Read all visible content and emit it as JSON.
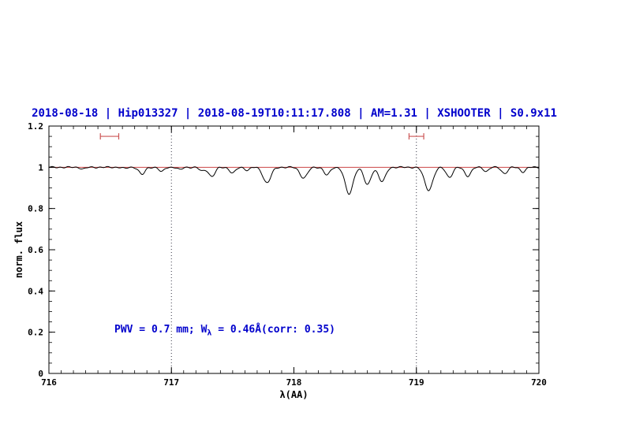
{
  "chart_data": {
    "type": "line",
    "title": "2018-08-18 | Hip013327 | 2018-08-19T10:11:17.808 | AM=1.31 | XSHOOTER | S0.9x11",
    "xlabel": "λ(AA)",
    "ylabel": "norm. flux",
    "xlim": [
      716,
      720
    ],
    "ylim": [
      0,
      1.2
    ],
    "x_ticks": [
      "716",
      "717",
      "718",
      "719",
      "720"
    ],
    "y_ticks": [
      "0",
      "0.2",
      "0.4",
      "0.6",
      "0.8",
      "1",
      "1.2"
    ],
    "x_minor_step": 0.1,
    "y_minor_step": 0.05,
    "grid": "off",
    "vlines": [
      717,
      719
    ],
    "continuum": 1.0,
    "noise_amplitude": 0.004,
    "colors": {
      "title": "#0000cc",
      "annotation": "#0000cc",
      "continuum": "#cc4444",
      "marker": "#cc5555",
      "spectrum": "#000000",
      "vline": "#333344",
      "frame": "#000000"
    },
    "markers": [
      {
        "x1": 716.42,
        "x2": 716.57,
        "y": 1.15
      },
      {
        "x1": 718.94,
        "x2": 719.06,
        "y": 1.15
      }
    ],
    "annotation": {
      "prefix": "PWV = 0.7 mm; W",
      "sub": "λ",
      "suffix": " = 0.46Å(corr: 0.35)",
      "x": 716.55,
      "y": 0.2
    },
    "absorption_lines": [
      [
        716.28,
        0.008,
        0.02
      ],
      [
        716.62,
        0.006,
        0.018
      ],
      [
        716.76,
        0.035,
        0.024
      ],
      [
        716.92,
        0.022,
        0.02
      ],
      [
        717.07,
        0.012,
        0.018
      ],
      [
        717.25,
        0.018,
        0.022
      ],
      [
        717.33,
        0.045,
        0.026
      ],
      [
        717.5,
        0.028,
        0.024
      ],
      [
        717.62,
        0.014,
        0.02
      ],
      [
        717.78,
        0.075,
        0.032
      ],
      [
        718.08,
        0.052,
        0.03
      ],
      [
        718.27,
        0.038,
        0.024
      ],
      [
        718.45,
        0.13,
        0.032
      ],
      [
        718.6,
        0.085,
        0.028
      ],
      [
        718.72,
        0.07,
        0.028
      ],
      [
        719.1,
        0.11,
        0.034
      ],
      [
        719.27,
        0.048,
        0.026
      ],
      [
        719.42,
        0.042,
        0.026
      ],
      [
        719.57,
        0.02,
        0.02
      ],
      [
        719.72,
        0.03,
        0.024
      ],
      [
        719.87,
        0.022,
        0.022
      ]
    ]
  }
}
